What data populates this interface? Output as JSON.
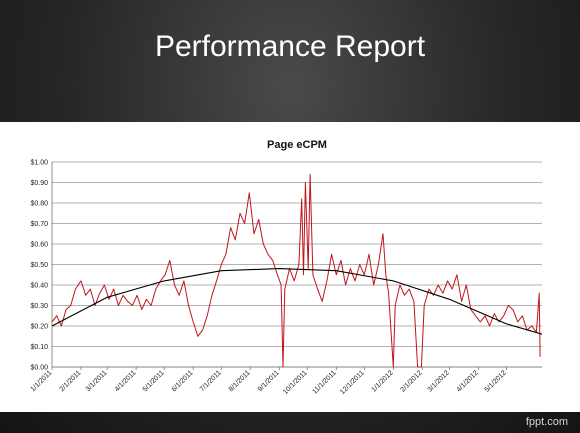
{
  "slide": {
    "title": "Performance Report",
    "credit": "fppt.com"
  },
  "colors": {
    "series": "#c0141b",
    "trend": "#000000",
    "grid": "#9a9a9a"
  },
  "chart_data": {
    "type": "line",
    "title": "Page eCPM",
    "xlabel": "",
    "ylabel": "",
    "ylim": [
      0,
      1.0
    ],
    "y_ticks": [
      "$0.00",
      "$0.10",
      "$0.20",
      "$0.30",
      "$0.40",
      "$0.50",
      "$0.60",
      "$0.70",
      "$0.80",
      "$0.90",
      "$1.00"
    ],
    "x_range": [
      "2011-01-01",
      "2012-06-08"
    ],
    "x_ticks": [
      "1/1/2011",
      "2/1/2011",
      "3/1/2011",
      "4/1/2011",
      "5/1/2011",
      "6/1/2011",
      "7/1/2011",
      "8/1/2011",
      "9/1/2011",
      "10/1/2011",
      "11/1/2011",
      "12/1/2011",
      "1/1/2012",
      "2/1/2012",
      "3/1/2012",
      "4/1/2012",
      "5/1/2012"
    ],
    "x_tick_dates": [
      "2011-01-01",
      "2011-02-01",
      "2011-03-01",
      "2011-04-01",
      "2011-05-01",
      "2011-06-01",
      "2011-07-01",
      "2011-08-01",
      "2011-09-01",
      "2011-10-01",
      "2011-11-01",
      "2011-12-01",
      "2012-01-01",
      "2012-02-01",
      "2012-03-01",
      "2012-04-01",
      "2012-05-01"
    ],
    "grid": true,
    "legend": "none",
    "series": [
      {
        "style": "line",
        "points": [
          [
            "2011-01-01",
            0.22
          ],
          [
            "2011-01-06",
            0.25
          ],
          [
            "2011-01-11",
            0.2
          ],
          [
            "2011-01-16",
            0.28
          ],
          [
            "2011-01-21",
            0.3
          ],
          [
            "2011-01-26",
            0.38
          ],
          [
            "2011-02-01",
            0.42
          ],
          [
            "2011-02-06",
            0.35
          ],
          [
            "2011-02-11",
            0.38
          ],
          [
            "2011-02-16",
            0.3
          ],
          [
            "2011-02-21",
            0.36
          ],
          [
            "2011-02-26",
            0.4
          ],
          [
            "2011-03-03",
            0.33
          ],
          [
            "2011-03-08",
            0.38
          ],
          [
            "2011-03-13",
            0.3
          ],
          [
            "2011-03-18",
            0.35
          ],
          [
            "2011-03-23",
            0.32
          ],
          [
            "2011-03-28",
            0.3
          ],
          [
            "2011-04-02",
            0.35
          ],
          [
            "2011-04-07",
            0.28
          ],
          [
            "2011-04-12",
            0.33
          ],
          [
            "2011-04-17",
            0.3
          ],
          [
            "2011-04-22",
            0.38
          ],
          [
            "2011-04-27",
            0.42
          ],
          [
            "2011-05-02",
            0.45
          ],
          [
            "2011-05-07",
            0.52
          ],
          [
            "2011-05-12",
            0.4
          ],
          [
            "2011-05-17",
            0.35
          ],
          [
            "2011-05-22",
            0.42
          ],
          [
            "2011-05-27",
            0.3
          ],
          [
            "2011-06-01",
            0.22
          ],
          [
            "2011-06-06",
            0.15
          ],
          [
            "2011-06-11",
            0.18
          ],
          [
            "2011-06-16",
            0.25
          ],
          [
            "2011-06-21",
            0.35
          ],
          [
            "2011-06-26",
            0.42
          ],
          [
            "2011-07-01",
            0.5
          ],
          [
            "2011-07-06",
            0.55
          ],
          [
            "2011-07-11",
            0.68
          ],
          [
            "2011-07-16",
            0.62
          ],
          [
            "2011-07-21",
            0.75
          ],
          [
            "2011-07-26",
            0.7
          ],
          [
            "2011-07-31",
            0.85
          ],
          [
            "2011-08-05",
            0.65
          ],
          [
            "2011-08-10",
            0.72
          ],
          [
            "2011-08-15",
            0.6
          ],
          [
            "2011-08-20",
            0.55
          ],
          [
            "2011-08-25",
            0.52
          ],
          [
            "2011-08-30",
            0.45
          ],
          [
            "2011-09-03",
            0.4
          ],
          [
            "2011-09-05",
            0.0
          ],
          [
            "2011-09-07",
            0.38
          ],
          [
            "2011-09-12",
            0.48
          ],
          [
            "2011-09-17",
            0.42
          ],
          [
            "2011-09-22",
            0.5
          ],
          [
            "2011-09-25",
            0.82
          ],
          [
            "2011-09-27",
            0.45
          ],
          [
            "2011-09-29",
            0.9
          ],
          [
            "2011-10-02",
            0.48
          ],
          [
            "2011-10-04",
            0.94
          ],
          [
            "2011-10-07",
            0.45
          ],
          [
            "2011-10-12",
            0.38
          ],
          [
            "2011-10-17",
            0.32
          ],
          [
            "2011-10-22",
            0.42
          ],
          [
            "2011-10-27",
            0.55
          ],
          [
            "2011-11-01",
            0.45
          ],
          [
            "2011-11-06",
            0.52
          ],
          [
            "2011-11-11",
            0.4
          ],
          [
            "2011-11-16",
            0.48
          ],
          [
            "2011-11-21",
            0.42
          ],
          [
            "2011-11-26",
            0.5
          ],
          [
            "2011-12-01",
            0.45
          ],
          [
            "2011-12-06",
            0.55
          ],
          [
            "2011-12-11",
            0.4
          ],
          [
            "2011-12-16",
            0.5
          ],
          [
            "2011-12-21",
            0.65
          ],
          [
            "2011-12-24",
            0.45
          ],
          [
            "2011-12-27",
            0.36
          ],
          [
            "2012-01-01",
            0.0
          ],
          [
            "2012-01-03",
            0.3
          ],
          [
            "2012-01-08",
            0.4
          ],
          [
            "2012-01-13",
            0.35
          ],
          [
            "2012-01-18",
            0.38
          ],
          [
            "2012-01-23",
            0.32
          ],
          [
            "2012-01-27",
            0.0
          ],
          [
            "2012-01-31",
            0.0
          ],
          [
            "2012-02-03",
            0.3
          ],
          [
            "2012-02-08",
            0.38
          ],
          [
            "2012-02-13",
            0.35
          ],
          [
            "2012-02-18",
            0.4
          ],
          [
            "2012-02-23",
            0.36
          ],
          [
            "2012-02-28",
            0.42
          ],
          [
            "2012-03-04",
            0.38
          ],
          [
            "2012-03-09",
            0.45
          ],
          [
            "2012-03-14",
            0.32
          ],
          [
            "2012-03-19",
            0.4
          ],
          [
            "2012-03-24",
            0.28
          ],
          [
            "2012-03-29",
            0.25
          ],
          [
            "2012-04-03",
            0.22
          ],
          [
            "2012-04-08",
            0.25
          ],
          [
            "2012-04-13",
            0.2
          ],
          [
            "2012-04-18",
            0.26
          ],
          [
            "2012-04-23",
            0.22
          ],
          [
            "2012-04-28",
            0.25
          ],
          [
            "2012-05-03",
            0.3
          ],
          [
            "2012-05-08",
            0.28
          ],
          [
            "2012-05-13",
            0.22
          ],
          [
            "2012-05-18",
            0.25
          ],
          [
            "2012-05-23",
            0.18
          ],
          [
            "2012-05-28",
            0.2
          ],
          [
            "2012-06-02",
            0.17
          ],
          [
            "2012-06-05",
            0.36
          ],
          [
            "2012-06-06",
            0.05
          ]
        ]
      },
      {
        "style": "trendline",
        "points": [
          [
            "2011-01-01",
            0.2
          ],
          [
            "2011-03-01",
            0.34
          ],
          [
            "2011-05-01",
            0.42
          ],
          [
            "2011-07-01",
            0.47
          ],
          [
            "2011-09-01",
            0.48
          ],
          [
            "2011-11-01",
            0.47
          ],
          [
            "2012-01-01",
            0.42
          ],
          [
            "2012-03-01",
            0.33
          ],
          [
            "2012-05-01",
            0.21
          ],
          [
            "2012-06-08",
            0.16
          ]
        ]
      }
    ]
  }
}
